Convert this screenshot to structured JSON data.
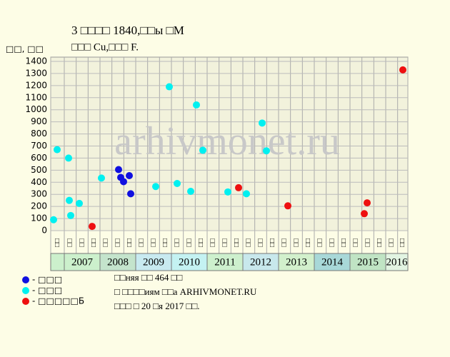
{
  "chart_data": {
    "type": "scatter",
    "title": "3 □□□□ 1840,□□ы □М",
    "subtitle": "□□□ Cu,□□□ F.",
    "y_label": "□□, □□",
    "watermark": "arhivmonet.ru",
    "xlim": [
      2006.62,
      2016.62
    ],
    "ylim": [
      0,
      1400
    ],
    "yticks": [
      0,
      100,
      200,
      300,
      400,
      500,
      600,
      700,
      800,
      900,
      1000,
      1100,
      1200,
      1300,
      1400
    ],
    "grid": true,
    "column_labels": [
      "□□",
      "□□",
      "□□",
      "□□",
      "□□",
      "□□",
      "□□",
      "□□",
      "□□",
      "□□",
      "□□",
      "□□",
      "□□",
      "□□",
      "□□",
      "□□",
      "□□",
      "□□",
      "□□",
      "□□",
      "□□",
      "□□",
      "□□",
      "□□",
      "□□",
      "□□",
      "□□",
      "□□",
      "□□",
      "□□"
    ],
    "year_bands": [
      {
        "label": "2007",
        "color": "#ccf0cc"
      },
      {
        "label": "2008",
        "color": "#c4e4cc"
      },
      {
        "label": "2009",
        "color": "#c8eaf0"
      },
      {
        "label": "2010",
        "color": "#c4f2f2"
      },
      {
        "label": "2011",
        "color": "#cdf0cd"
      },
      {
        "label": "2012",
        "color": "#c8e8ec"
      },
      {
        "label": "2013",
        "color": "#d2f0cc"
      },
      {
        "label": "2014",
        "color": "#a8d8d8"
      },
      {
        "label": "2015",
        "color": "#c0e4c4"
      },
      {
        "label": "2016",
        "color": "#e2f4e2"
      }
    ],
    "series": [
      {
        "name": "- □□□",
        "color": "#1010e0",
        "x": [
          2008.52,
          2008.58,
          2008.66,
          2008.82,
          2008.86
        ],
        "values": [
          505,
          440,
          405,
          455,
          305
        ]
      },
      {
        "name": "- □□□",
        "color": "#00f0f0",
        "x": [
          2006.7,
          2006.8,
          2007.12,
          2007.14,
          2007.18,
          2007.42,
          2008.04,
          2009.56,
          2009.94,
          2010.16,
          2010.54,
          2010.7,
          2010.88,
          2011.58,
          2012.1,
          2012.54,
          2012.66
        ],
        "values": [
          90,
          670,
          600,
          250,
          125,
          225,
          435,
          365,
          1190,
          390,
          325,
          1040,
          665,
          320,
          305,
          890,
          660
        ]
      },
      {
        "name": "- □□□□□Б",
        "color": "#ee1010",
        "x": [
          2007.78,
          2011.88,
          2013.26,
          2015.4,
          2015.48,
          2016.48
        ],
        "values": [
          35,
          355,
          205,
          140,
          230,
          1330
        ]
      }
    ],
    "notes": [
      "□□няя □□ 464 □□",
      "□ □□□□иям □□а ARHIVMONET.RU",
      "□□□ □ 20 □я 2017 □□."
    ]
  }
}
